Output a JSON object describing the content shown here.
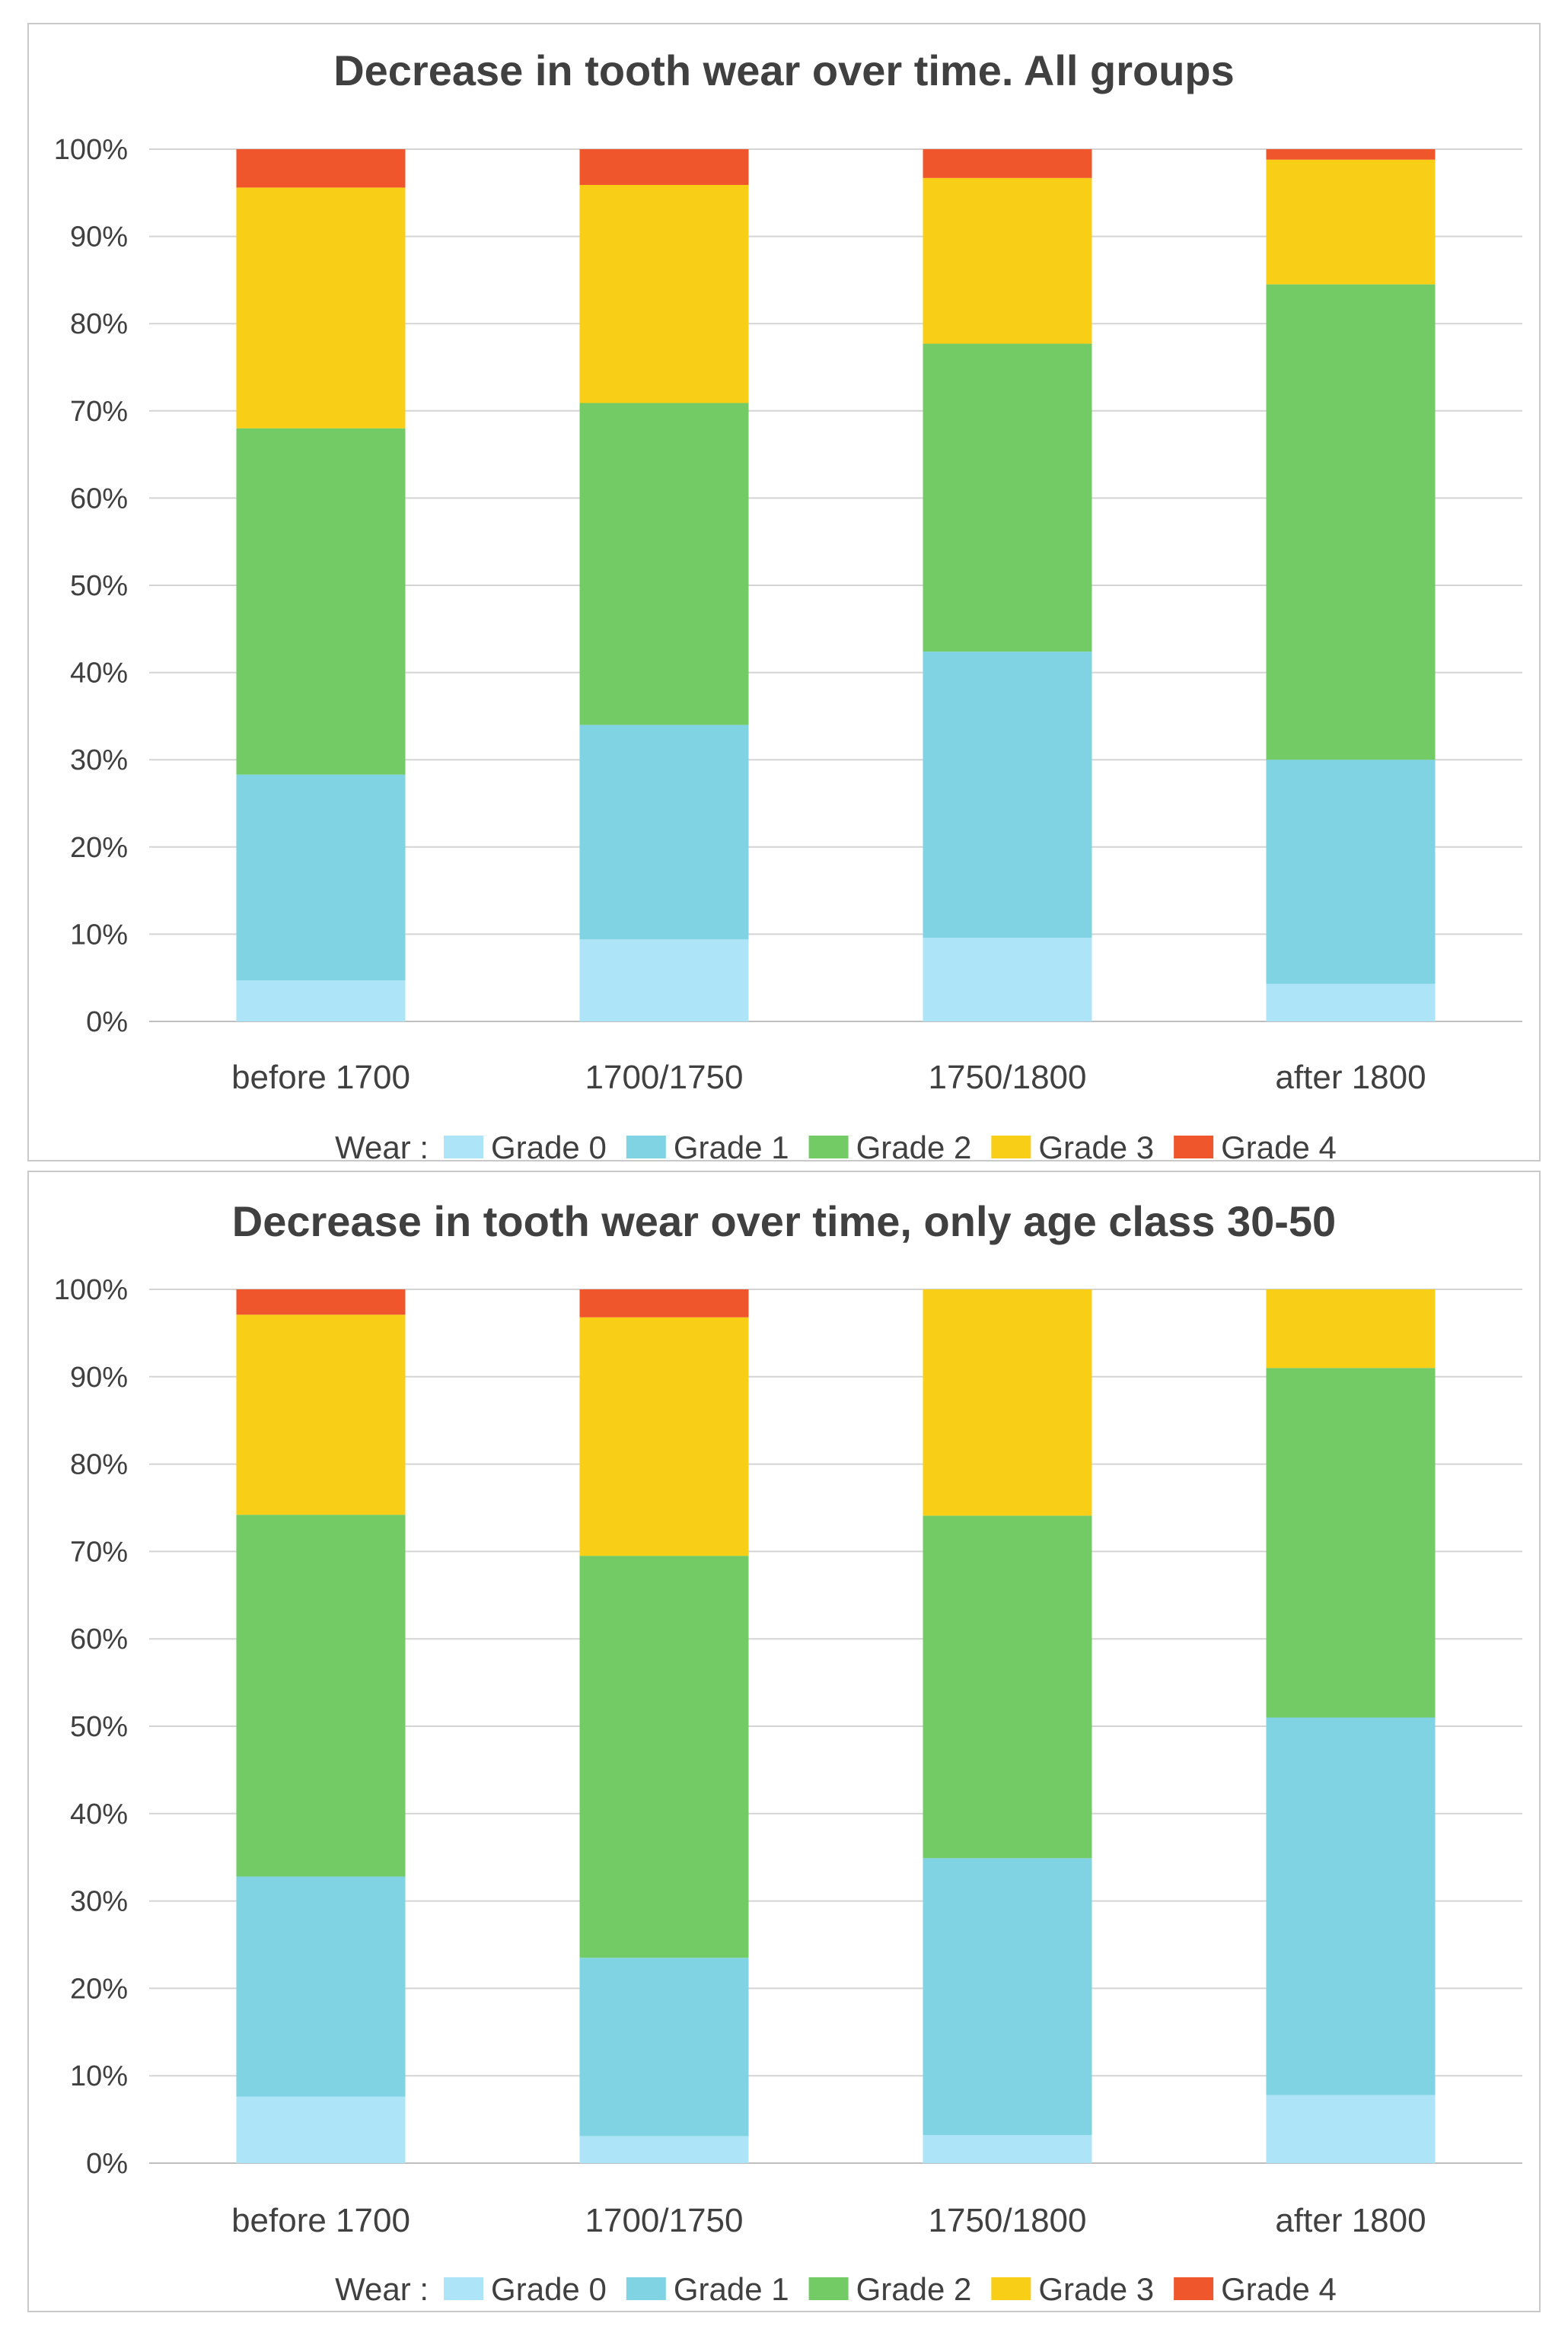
{
  "colors": {
    "grid": "#d4d4d4",
    "axis": "#bfbfbf",
    "text": "#404040",
    "series": [
      "#ade4f7",
      "#7fd3e3",
      "#72cb65",
      "#f8ce17",
      "#f0562b"
    ]
  },
  "chart_data": [
    {
      "type": "bar",
      "stacked": true,
      "title": "Decrease in tooth wear over time. All groups",
      "categories": [
        "before 1700",
        "1700/1750",
        "1750/1800",
        "after 1800"
      ],
      "yticks": [
        "0%",
        "10%",
        "20%",
        "30%",
        "40%",
        "50%",
        "60%",
        "70%",
        "80%",
        "90%",
        "100%"
      ],
      "ylim": [
        0,
        100
      ],
      "grid": true,
      "legend_title": "Wear :",
      "legend_position": "bottom",
      "series": [
        {
          "name": "Grade 0",
          "values": [
            4.7,
            9.4,
            9.6,
            4.3
          ]
        },
        {
          "name": "Grade 1",
          "values": [
            23.6,
            24.6,
            32.8,
            25.7
          ]
        },
        {
          "name": "Grade 2",
          "values": [
            39.7,
            36.9,
            35.3,
            54.5
          ]
        },
        {
          "name": "Grade 3",
          "values": [
            27.6,
            25.0,
            19.0,
            14.3
          ]
        },
        {
          "name": "Grade 4",
          "values": [
            4.4,
            4.1,
            3.3,
            1.2
          ]
        }
      ]
    },
    {
      "type": "bar",
      "stacked": true,
      "title": "Decrease in tooth wear over time, only age class 30-50",
      "categories": [
        "before 1700",
        "1700/1750",
        "1750/1800",
        "after 1800"
      ],
      "yticks": [
        "0%",
        "10%",
        "20%",
        "30%",
        "40%",
        "50%",
        "60%",
        "70%",
        "80%",
        "90%",
        "100%"
      ],
      "ylim": [
        0,
        100
      ],
      "grid": true,
      "legend_title": "Wear :",
      "legend_position": "bottom",
      "series": [
        {
          "name": "Grade 0",
          "values": [
            7.6,
            3.1,
            3.2,
            7.8
          ]
        },
        {
          "name": "Grade 1",
          "values": [
            25.2,
            20.4,
            31.7,
            43.2
          ]
        },
        {
          "name": "Grade 2",
          "values": [
            41.4,
            46.0,
            39.2,
            40.0
          ]
        },
        {
          "name": "Grade 3",
          "values": [
            22.9,
            27.3,
            25.9,
            9.0
          ]
        },
        {
          "name": "Grade 4",
          "values": [
            2.9,
            3.2,
            0.0,
            0.0
          ]
        }
      ]
    }
  ]
}
